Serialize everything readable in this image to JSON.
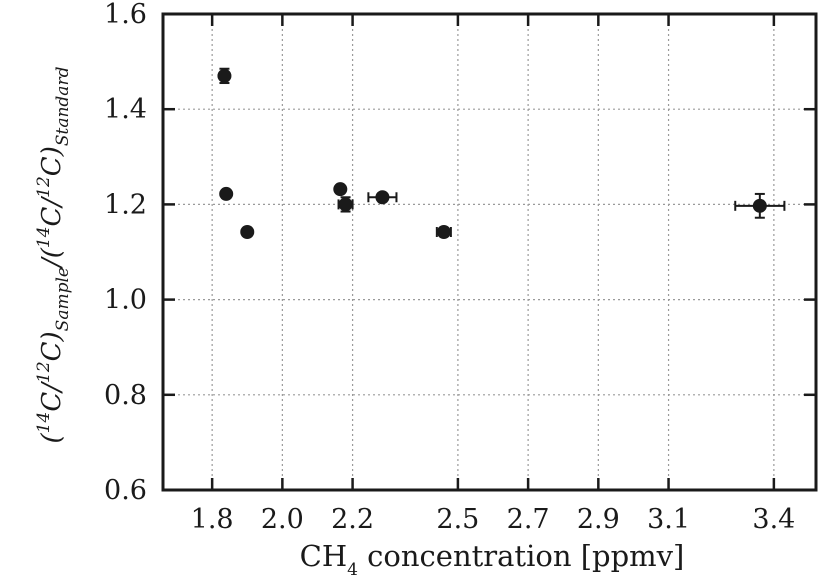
{
  "chart_data": {
    "type": "scatter",
    "title": "",
    "xlabel": "CH",
    "xlabel_sub": "4",
    "xlabel_rest": " concentration [ppmv]",
    "ylabel": "(14C/12C)Sample/(14C/12C)Standard",
    "xlim": [
      1.66,
      3.52
    ],
    "ylim": [
      0.6,
      1.6
    ],
    "xticks": [
      1.8,
      2.0,
      2.2,
      2.5,
      2.7,
      2.9,
      3.1,
      3.4
    ],
    "xtick_labels": [
      "1.8",
      "2.0",
      "2.2",
      "2.5",
      "2.7",
      "2.9",
      "3.1",
      "3.4"
    ],
    "yticks": [
      0.6,
      0.8,
      1.0,
      1.2,
      1.4,
      1.6
    ],
    "ytick_labels": [
      "0.6",
      "0.8",
      "1.0",
      "1.2",
      "1.4",
      "1.6"
    ],
    "grid": true,
    "points": [
      {
        "x": 1.835,
        "y": 1.47,
        "xerr": 0.0,
        "yerr": 0.015
      },
      {
        "x": 1.84,
        "y": 1.222,
        "xerr": 0.01,
        "yerr": 0.008
      },
      {
        "x": 1.9,
        "y": 1.142,
        "xerr": 0.0,
        "yerr": 0.006
      },
      {
        "x": 2.165,
        "y": 1.232,
        "xerr": 0.0,
        "yerr": 0.008
      },
      {
        "x": 2.18,
        "y": 1.2,
        "xerr": 0.02,
        "yerr": 0.015
      },
      {
        "x": 2.285,
        "y": 1.215,
        "xerr": 0.04,
        "yerr": 0.006
      },
      {
        "x": 2.46,
        "y": 1.142,
        "xerr": 0.02,
        "yerr": 0.006
      },
      {
        "x": 3.36,
        "y": 1.197,
        "xerr": 0.07,
        "yerr": 0.025
      }
    ]
  }
}
